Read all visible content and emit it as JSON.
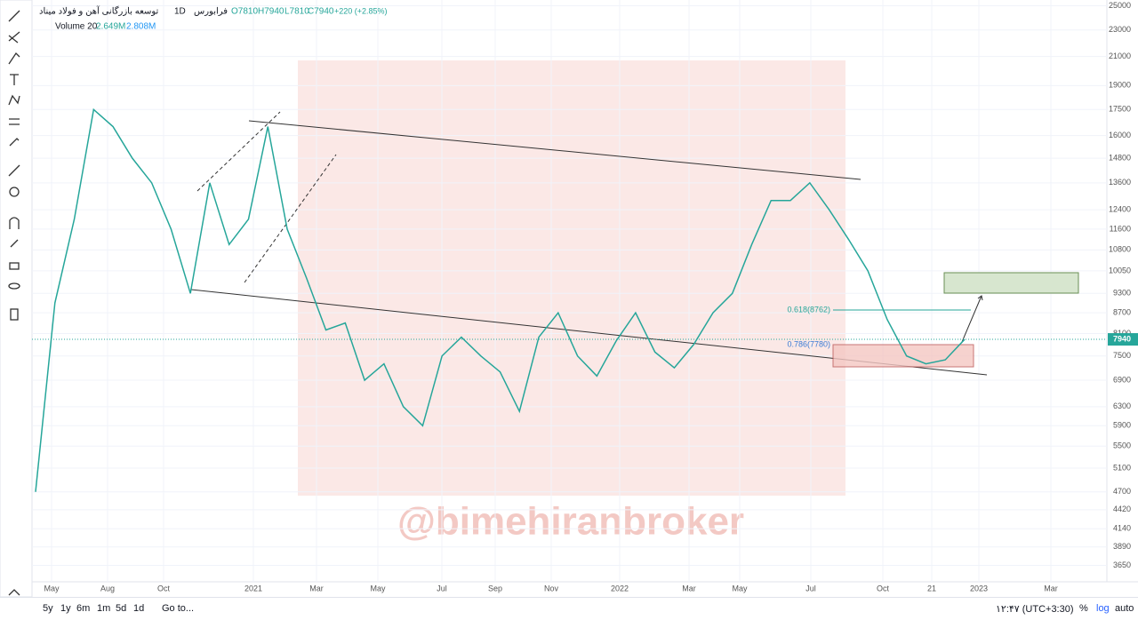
{
  "header": {
    "symbol": "توسعه بازرگانی آهن و فولاد میناد",
    "interval": "1D",
    "exchange": "فرابورس",
    "open": "O7810",
    "high": "H7940",
    "low": "L7810",
    "close": "C7940",
    "change": "+220 (+2.85%)",
    "volume_label": "Volume 20",
    "volume_1": "2.649M",
    "volume_2": "2.808M"
  },
  "chart_data": {
    "type": "line",
    "log_scale": true,
    "grid": true,
    "color": "#26a69a",
    "values": [
      4700,
      9000,
      12000,
      17500,
      16500,
      14800,
      13600,
      11600,
      9300,
      13600,
      11000,
      12000,
      16500,
      11600,
      9800,
      8200,
      8400,
      6900,
      7300,
      6300,
      5900,
      7500,
      8000,
      7500,
      7100,
      6200,
      8000,
      8700,
      7500,
      7000,
      7900,
      8700,
      7600,
      7200,
      7800,
      8700,
      9300,
      11000,
      12800,
      12800,
      13600,
      12400,
      11200,
      10050,
      8500,
      7500,
      7300,
      7400,
      7940
    ],
    "ylim": [
      3450,
      25500
    ],
    "yticks": [
      25000,
      23000,
      21000,
      19000,
      17500,
      16000,
      14800,
      13600,
      12400,
      11600,
      10800,
      10050,
      9300,
      8700,
      8100,
      7500,
      6900,
      6300,
      5900,
      5500,
      5100,
      4700,
      4420,
      4140,
      3890,
      3650
    ],
    "last_price": 7940,
    "x_labels": [
      "May",
      "Aug",
      "Oct",
      "2021",
      "Mar",
      "May",
      "Jul",
      "Sep",
      "Nov",
      "2022",
      "Mar",
      "May",
      "Jul",
      "Oct",
      "21",
      "2023",
      "Mar"
    ],
    "fib_618": "0.618(8762)",
    "fib_786": "0.786(7780)"
  },
  "watermark": "@bimehiranbroker",
  "bottom_bar": {
    "ranges": [
      "5y",
      "1y",
      "6m",
      "1m",
      "5d",
      "1d"
    ],
    "goto": "Go to...",
    "time": "۱۲:۴۷ (UTC+3:30)",
    "percent": "%",
    "log": "log",
    "auto": "auto"
  }
}
